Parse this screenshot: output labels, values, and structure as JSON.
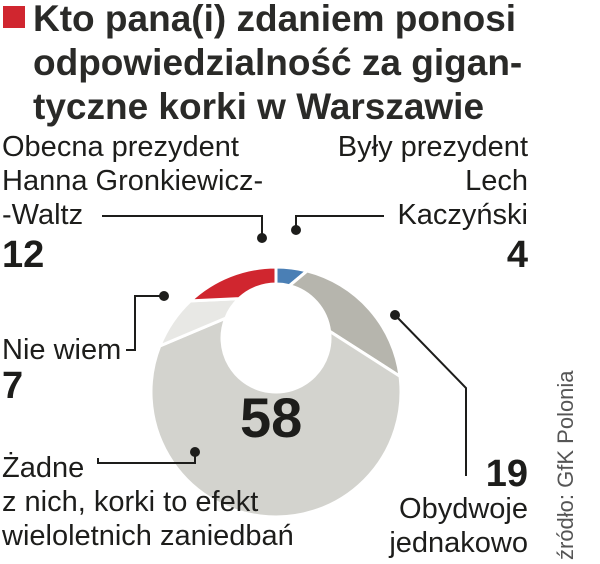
{
  "title_lines": [
    "Kto pana(i) zdaniem ponosi",
    "odpowiedzialność za gigan-",
    "tyczne korki w Warszawie"
  ],
  "source": "źródło: GfK Polonia",
  "colors": {
    "accent": "#d0262f",
    "lech": "#4a7fb5",
    "both": "#b6b5ad",
    "none": "#d3d3ce",
    "dontknow": "#e8e8e5"
  },
  "chart_data": {
    "type": "pie",
    "title": "Kto pana(i) zdaniem ponosi odpowiedzialność za gigantyczne korki w Warszawie",
    "slices": [
      {
        "label_lines": [
          "Były prezydent",
          "Lech",
          "Kaczyński"
        ],
        "value": 4,
        "value_text": "4",
        "color": "#4a7fb5"
      },
      {
        "label_lines": [
          "Obydwoje",
          "jednakowo"
        ],
        "value": 19,
        "value_text": "19",
        "color": "#b6b5ad"
      },
      {
        "label_lines": [
          "Żadne",
          "z nich, korki to efekt",
          "wieloletnich zaniedbań"
        ],
        "value": 58,
        "value_text": "58",
        "color": "#d3d3ce"
      },
      {
        "label_lines": [
          "Nie wiem"
        ],
        "value": 7,
        "value_text": "7",
        "color": "#e8e8e5"
      },
      {
        "label_lines": [
          "Obecna prezydent",
          "Hanna Gronkiewicz-",
          "-Waltz"
        ],
        "value": 12,
        "value_text": "12",
        "color": "#d0262f"
      }
    ]
  }
}
